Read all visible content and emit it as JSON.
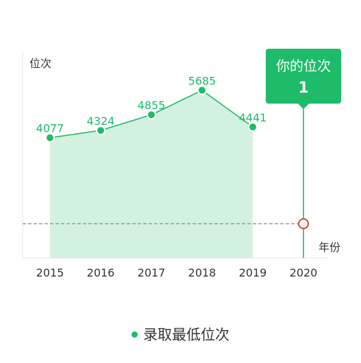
{
  "chart_data": {
    "type": "area",
    "y_axis_label": "位次",
    "x_axis_label": "年份",
    "categories": [
      "2015",
      "2016",
      "2017",
      "2018",
      "2019",
      "2020"
    ],
    "series": [
      {
        "name": "录取最低位次",
        "values": [
          4077,
          4324,
          4855,
          5685,
          4441,
          null
        ]
      }
    ],
    "ylim": [
      0,
      7000
    ],
    "your_rank": {
      "year": "2020",
      "label": "你的位次",
      "value": 1
    },
    "grid": false,
    "legend_position": "bottom"
  },
  "colors": {
    "accent": "#1dbb6a",
    "area_fill": "#d3f1e0",
    "axis": "#e5e5e5",
    "text": "#333333",
    "marker_red": "#d9413b",
    "dashed": "#888888"
  }
}
